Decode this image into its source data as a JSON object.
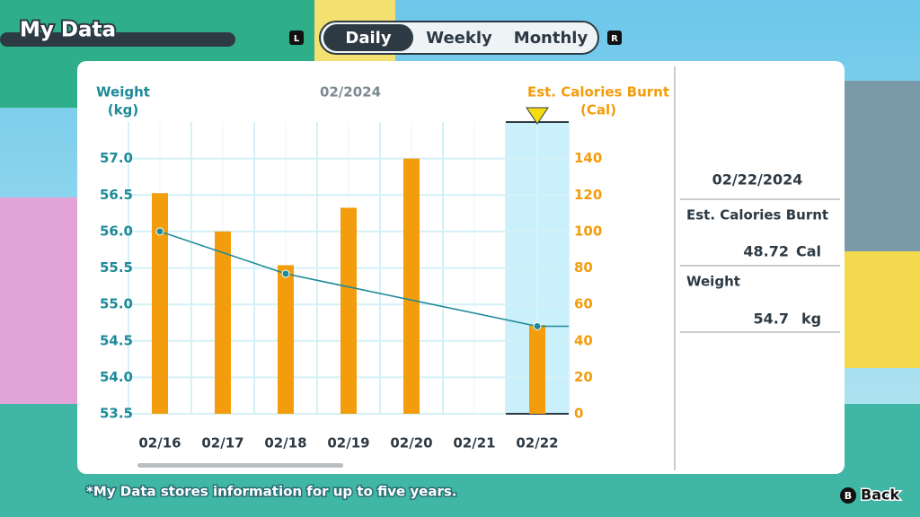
{
  "header": {
    "title": "My Data",
    "left_button": "L",
    "right_button": "R",
    "tabs": [
      "Daily",
      "Weekly",
      "Monthly"
    ],
    "active_tab": 0
  },
  "chart_data": {
    "type": "combo",
    "title": "02/2024",
    "y_unit": "(kg)",
    "y2_unit": "(Cal)",
    "categories": [
      "02/16",
      "02/17",
      "02/18",
      "02/19",
      "02/20",
      "02/21",
      "02/22"
    ],
    "series": [
      {
        "name": "Est. Calories Burnt",
        "type": "bar",
        "axis": "y2",
        "color": "#f39c0c",
        "values": [
          121,
          100,
          81.5,
          113,
          140,
          null,
          48.72
        ]
      },
      {
        "name": "Weight",
        "type": "line",
        "color": "#1e8a98",
        "x": [
          "02/16",
          "02/18",
          "02/22"
        ],
        "values": [
          56.0,
          55.42,
          54.7
        ]
      }
    ],
    "ylim": [
      53.5,
      57.5
    ],
    "yticks": [
      53.5,
      {
        "value": 54,
        "label": "54.0"
      },
      54.5,
      {
        "value": 55,
        "label": "55.0"
      },
      55.5,
      {
        "value": 56,
        "label": "56.0"
      },
      56.5,
      {
        "value": 57,
        "label": "57.0"
      }
    ],
    "y2lim": [
      0,
      160
    ],
    "y2ticks": [
      0,
      20,
      40,
      60,
      80,
      100,
      120,
      140
    ],
    "grid": true,
    "selected": 6
  },
  "detail": {
    "date": "02/22/2024",
    "calories_label": "Est. Calories Burnt",
    "calories_value": "48.72",
    "calories_unit": "Cal",
    "weight_label": "Weight",
    "weight_value": "54.7",
    "weight_unit": "kg"
  },
  "footer": {
    "note": "*My Data stores information for up to five years.",
    "back_button": "B",
    "back_label": "Back"
  }
}
